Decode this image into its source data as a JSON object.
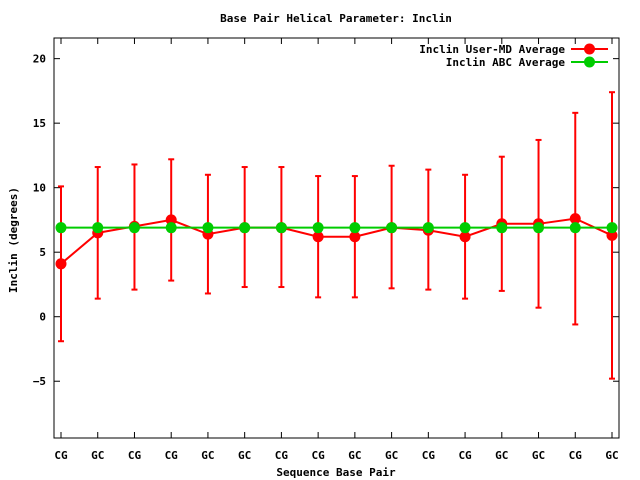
{
  "chart_data": {
    "type": "line",
    "title": "Base Pair Helical Parameter: Inclin",
    "xlabel": "Sequence Base Pair",
    "ylabel": "Inclin (degrees)",
    "categories": [
      "CG",
      "GC",
      "CG",
      "CG",
      "GC",
      "GC",
      "CG",
      "CG",
      "GC",
      "GC",
      "CG",
      "CG",
      "GC",
      "GC",
      "CG",
      "GC"
    ],
    "ylim": [
      -9.4,
      21.6
    ],
    "yticks": [
      -5,
      0,
      5,
      10,
      15,
      20
    ],
    "grid": false,
    "legend_position": "top-right",
    "series": [
      {
        "name": "Inclin User-MD Average",
        "color": "#ff0000",
        "values": [
          4.1,
          6.5,
          7.0,
          7.5,
          6.4,
          6.9,
          6.9,
          6.2,
          6.2,
          6.9,
          6.7,
          6.2,
          7.2,
          7.2,
          7.6,
          6.3
        ],
        "error_low": [
          -1.9,
          1.4,
          2.1,
          2.8,
          1.8,
          2.3,
          2.3,
          1.5,
          1.5,
          2.2,
          2.1,
          1.4,
          2.0,
          0.7,
          -0.6,
          -4.8
        ],
        "error_high": [
          10.1,
          11.6,
          11.8,
          12.2,
          11.0,
          11.6,
          11.6,
          10.9,
          10.9,
          11.7,
          11.4,
          11.0,
          12.4,
          13.7,
          15.8,
          17.4
        ]
      },
      {
        "name": "Inclin ABC Average",
        "color": "#00cc00",
        "values": [
          6.9,
          6.9,
          6.9,
          6.9,
          6.9,
          6.9,
          6.9,
          6.9,
          6.9,
          6.9,
          6.9,
          6.9,
          6.9,
          6.9,
          6.9,
          6.9
        ]
      }
    ]
  }
}
